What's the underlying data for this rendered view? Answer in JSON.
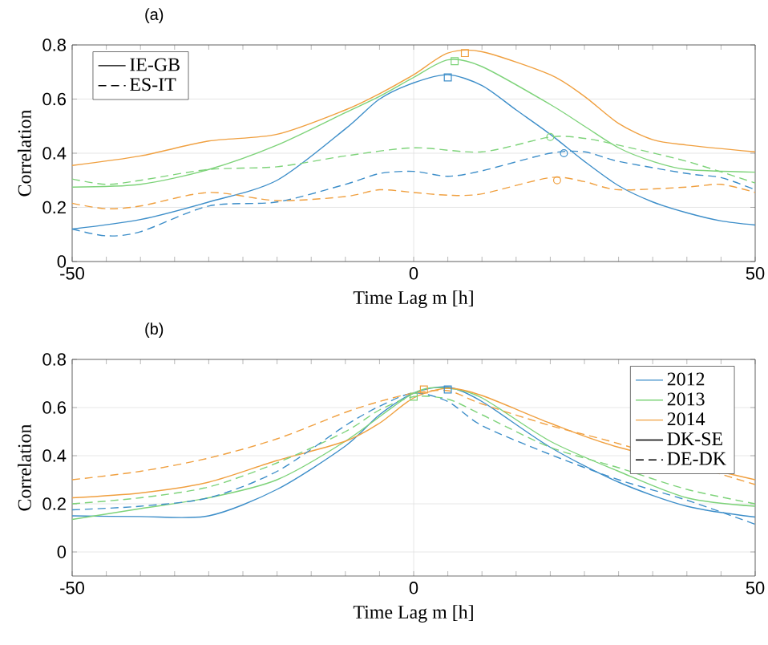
{
  "chart_data": [
    {
      "type": "line",
      "title": "(a)",
      "xlabel": "Time Lag m [h]",
      "ylabel": "Correlation",
      "xlim": [
        -50,
        50
      ],
      "xticks": [
        -50,
        {
          "value": -45,
          "label": null
        },
        {
          "value": -40,
          "label": null
        },
        {
          "value": -35,
          "label": null
        },
        {
          "value": -30,
          "label": null
        },
        {
          "value": -25,
          "label": null
        },
        {
          "value": -20,
          "label": null
        },
        {
          "value": -15,
          "label": null
        },
        {
          "value": -10,
          "label": null
        },
        {
          "value": -5,
          "label": null
        },
        0,
        {
          "value": 5,
          "label": null
        },
        {
          "value": 10,
          "label": null
        },
        {
          "value": 15,
          "label": null
        },
        {
          "value": 20,
          "label": null
        },
        {
          "value": 25,
          "label": null
        },
        {
          "value": 30,
          "label": null
        },
        {
          "value": 35,
          "label": null
        },
        {
          "value": 40,
          "label": null
        },
        {
          "value": 45,
          "label": null
        },
        50
      ],
      "ylim": [
        0,
        0.8
      ],
      "yticks": [
        0,
        0.2,
        0.4,
        0.6,
        0.8
      ],
      "grid": true,
      "legend": "top left",
      "series": [
        {
          "color": "#3d8ec9",
          "line_style": "solid",
          "x": [
            -50,
            -40,
            -30,
            -20,
            -10,
            -5,
            0,
            5,
            10,
            15,
            20,
            25,
            30,
            35,
            40,
            45,
            50
          ],
          "values": [
            0.12,
            0.155,
            0.22,
            0.3,
            0.49,
            0.6,
            0.66,
            0.69,
            0.65,
            0.56,
            0.47,
            0.37,
            0.28,
            0.22,
            0.18,
            0.15,
            0.135
          ]
        },
        {
          "color": "#7ed37a",
          "line_style": "solid",
          "x": [
            -50,
            -40,
            -30,
            -20,
            -10,
            -5,
            0,
            5,
            10,
            20,
            25,
            30,
            35,
            40,
            50
          ],
          "values": [
            0.275,
            0.285,
            0.34,
            0.43,
            0.55,
            0.61,
            0.68,
            0.745,
            0.72,
            0.58,
            0.5,
            0.42,
            0.37,
            0.34,
            0.33
          ]
        },
        {
          "color": "#f0a040",
          "line_style": "solid",
          "x": [
            -50,
            -40,
            -30,
            -20,
            -10,
            -5,
            0,
            5,
            10,
            20,
            25,
            30,
            35,
            40,
            50
          ],
          "values": [
            0.355,
            0.39,
            0.445,
            0.47,
            0.56,
            0.62,
            0.69,
            0.77,
            0.775,
            0.69,
            0.61,
            0.51,
            0.45,
            0.43,
            0.405
          ]
        },
        {
          "color": "#7ed37a",
          "line_style": "dashed",
          "x": [
            -50,
            -45,
            -40,
            -30,
            -20,
            -10,
            0,
            10,
            20,
            25,
            30,
            40,
            50
          ],
          "values": [
            0.305,
            0.285,
            0.3,
            0.34,
            0.35,
            0.39,
            0.42,
            0.405,
            0.46,
            0.455,
            0.43,
            0.37,
            0.29
          ]
        },
        {
          "color": "#3d8ec9",
          "line_style": "dashed",
          "x": [
            -50,
            -45,
            -40,
            -30,
            -20,
            -10,
            -5,
            0,
            5,
            10,
            20,
            25,
            30,
            40,
            45,
            50
          ],
          "values": [
            0.12,
            0.095,
            0.11,
            0.205,
            0.22,
            0.285,
            0.325,
            0.333,
            0.315,
            0.335,
            0.4,
            0.405,
            0.37,
            0.325,
            0.31,
            0.265
          ]
        },
        {
          "color": "#f0a040",
          "line_style": "dashed",
          "x": [
            -50,
            -45,
            -40,
            -30,
            -20,
            -10,
            -5,
            0,
            5,
            10,
            20,
            25,
            30,
            40,
            45,
            50
          ],
          "values": [
            0.215,
            0.195,
            0.205,
            0.255,
            0.225,
            0.24,
            0.265,
            0.255,
            0.245,
            0.25,
            0.31,
            0.295,
            0.265,
            0.275,
            0.285,
            0.255
          ]
        },
        {
          "name": "IE-GB",
          "color": "#000000",
          "line_style": "solid"
        },
        {
          "name": "ES-IT",
          "color": "#000000",
          "line_style": "dashed"
        },
        {
          "type": "scatter",
          "marker": "square",
          "x": [
            5,
            6,
            7.5
          ],
          "values": [
            0.68,
            0.74,
            0.77
          ],
          "colors": [
            "#3d8ec9",
            "#7ed37a",
            "#f0a040"
          ]
        },
        {
          "type": "scatter",
          "marker": "circle",
          "x": [
            20,
            22,
            21
          ],
          "values": [
            0.46,
            0.4,
            0.3
          ],
          "colors": [
            "#7ed37a",
            "#3d8ec9",
            "#f0a040"
          ]
        }
      ]
    },
    {
      "type": "line",
      "title": "(b)",
      "xlabel": "Time Lag m [h]",
      "ylabel": "Correlation",
      "xlim": [
        -50,
        50
      ],
      "xticks": [
        -50,
        {
          "value": -45,
          "label": null
        },
        {
          "value": -40,
          "label": null
        },
        {
          "value": -35,
          "label": null
        },
        {
          "value": -30,
          "label": null
        },
        {
          "value": -25,
          "label": null
        },
        {
          "value": -20,
          "label": null
        },
        {
          "value": -15,
          "label": null
        },
        {
          "value": -10,
          "label": null
        },
        {
          "value": -5,
          "label": null
        },
        0,
        {
          "value": 5,
          "label": null
        },
        {
          "value": 10,
          "label": null
        },
        {
          "value": 15,
          "label": null
        },
        {
          "value": 20,
          "label": null
        },
        {
          "value": 25,
          "label": null
        },
        {
          "value": 30,
          "label": null
        },
        {
          "value": 35,
          "label": null
        },
        {
          "value": 40,
          "label": null
        },
        {
          "value": 45,
          "label": null
        },
        50
      ],
      "ylim": [
        -0.1,
        0.8
      ],
      "yticks": [
        0,
        0.2,
        0.4,
        0.6,
        0.8
      ],
      "grid": true,
      "legend": "top right",
      "series": [
        {
          "name": "2012",
          "color": "#3d8ec9",
          "line_style": "solid",
          "x": [
            -50,
            -40,
            -30,
            -20,
            -10,
            -5,
            0,
            5,
            10,
            20,
            30,
            40,
            50
          ],
          "values": [
            0.15,
            0.147,
            0.15,
            0.26,
            0.44,
            0.57,
            0.66,
            0.685,
            0.625,
            0.435,
            0.29,
            0.19,
            0.145
          ]
        },
        {
          "name": "2013",
          "color": "#7ed37a",
          "line_style": "solid",
          "x": [
            -50,
            -40,
            -30,
            -20,
            -10,
            0,
            5,
            10,
            20,
            30,
            40,
            50
          ],
          "values": [
            0.135,
            0.18,
            0.225,
            0.3,
            0.46,
            0.66,
            0.68,
            0.64,
            0.46,
            0.335,
            0.225,
            0.19
          ]
        },
        {
          "name": "2014",
          "color": "#f0a040",
          "line_style": "solid",
          "x": [
            -50,
            -40,
            -30,
            -20,
            -10,
            -5,
            0,
            5,
            10,
            20,
            30,
            40,
            50
          ],
          "values": [
            0.225,
            0.245,
            0.29,
            0.38,
            0.46,
            0.535,
            0.64,
            0.68,
            0.65,
            0.535,
            0.435,
            null,
            0.3
          ]
        },
        {
          "name": "DK-SE",
          "color": "#000000",
          "line_style": "solid"
        },
        {
          "name": "DE-DK",
          "color": "#000000",
          "line_style": "dashed"
        },
        {
          "color": "#7ed37a",
          "line_style": "dashed",
          "x": [
            -50,
            -40,
            -30,
            -20,
            -10,
            -5,
            0,
            5,
            10,
            20,
            30,
            40,
            50
          ],
          "values": [
            0.2,
            0.225,
            0.27,
            0.37,
            0.5,
            0.59,
            0.645,
            0.635,
            0.57,
            0.435,
            0.35,
            0.26,
            0.2
          ]
        },
        {
          "color": "#3d8ec9",
          "line_style": "dashed",
          "x": [
            -50,
            -40,
            -30,
            -20,
            -10,
            -5,
            0,
            5,
            10,
            20,
            30,
            40,
            50
          ],
          "values": [
            0.175,
            0.19,
            0.225,
            0.335,
            0.525,
            0.605,
            0.66,
            0.625,
            0.525,
            0.405,
            0.3,
            0.215,
            0.115
          ]
        },
        {
          "color": "#f0a040",
          "line_style": "dashed",
          "x": [
            -50,
            -40,
            -30,
            -20,
            -10,
            -5,
            0,
            5,
            10,
            20,
            30,
            40,
            50
          ],
          "values": [
            0.3,
            0.335,
            0.39,
            0.47,
            0.58,
            0.625,
            0.66,
            0.67,
            0.615,
            0.525,
            0.45,
            null,
            0.28
          ]
        },
        {
          "type": "scatter",
          "marker": "square",
          "x": [
            0,
            5,
            1.5
          ],
          "values": [
            0.645,
            0.675,
            0.675
          ],
          "colors": [
            "#7ed37a",
            "#3d8ec9",
            "#f0a040"
          ]
        }
      ]
    }
  ]
}
